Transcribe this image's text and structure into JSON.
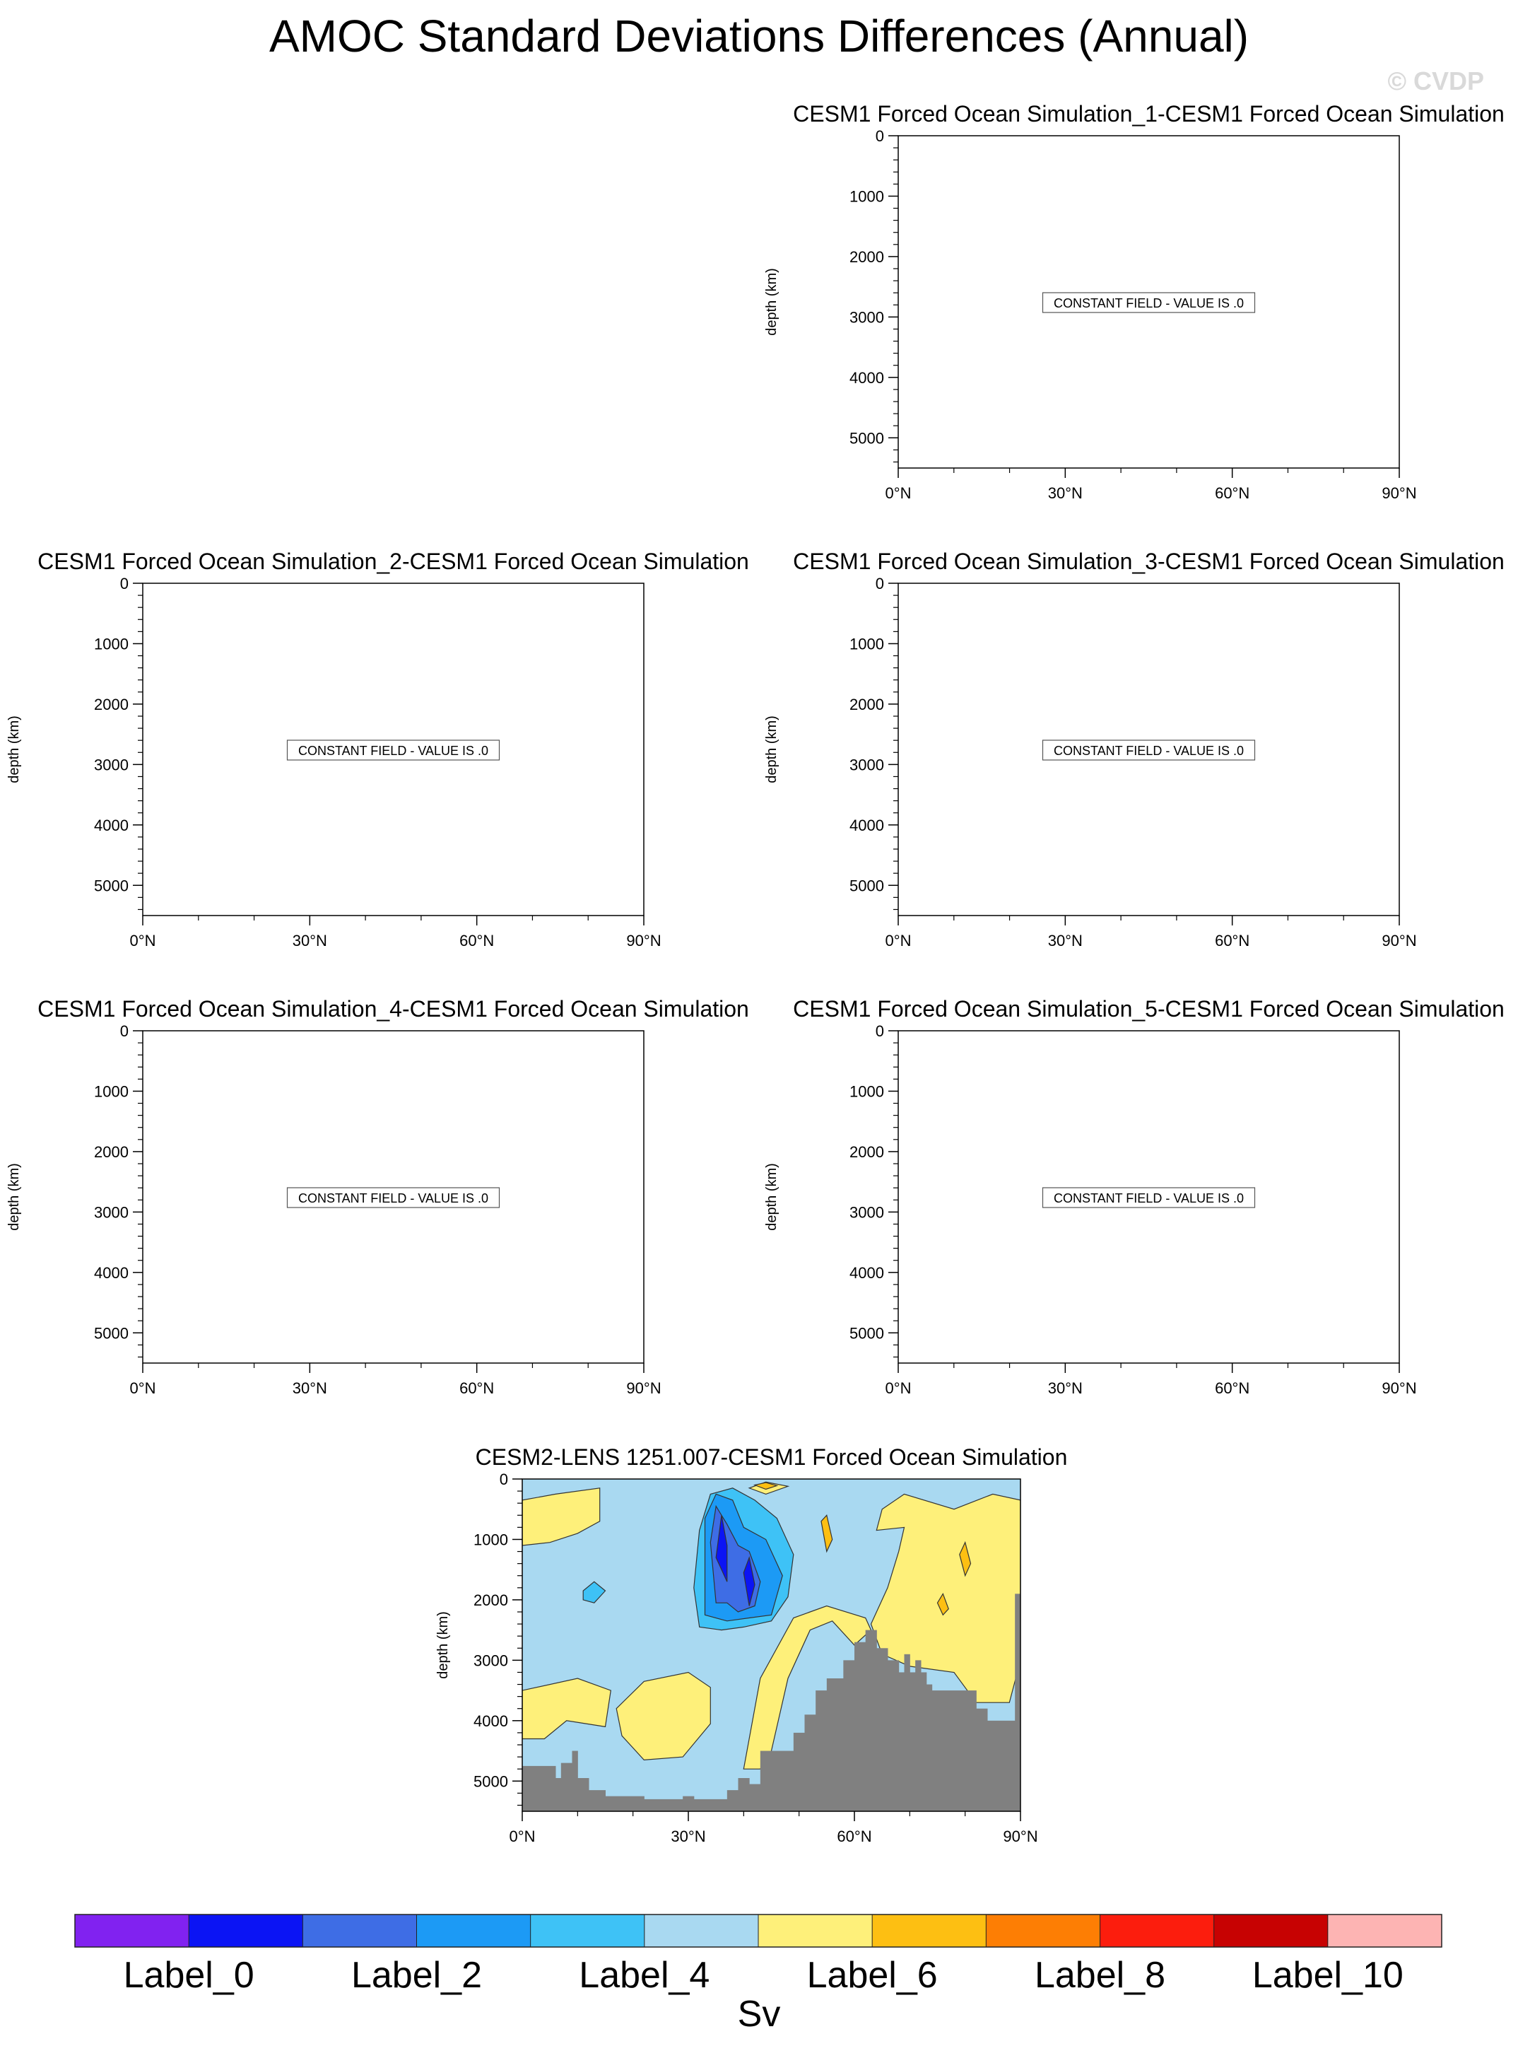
{
  "figure": {
    "title": "AMOC Standard Deviations Differences (Annual)",
    "watermark": "© CVDP",
    "constant_field_text": "CONSTANT FIELD - VALUE IS .0",
    "colorbar": {
      "colors": [
        "#8122f0",
        "#0b14f4",
        "#3e6de5",
        "#1c9af5",
        "#3ec2f6",
        "#a9d9f1",
        "#fef07a",
        "#fdbf12",
        "#fd7e04",
        "#fc1d0d",
        "#c70202",
        "#fdb4b3"
      ],
      "tick_labels": [
        "Label_0",
        "Label_2",
        "Label_4",
        "Label_6",
        "Label_8",
        "Label_10"
      ],
      "unit": "Sv"
    },
    "land_color": "#808080"
  },
  "chart_data": [
    {
      "type": "heatmap",
      "title": "CESM1 Forced Ocean Simulation_1-CESM1 Forced Ocean Simulation",
      "ylabel": "depth (km)",
      "xlim": [
        0,
        90
      ],
      "ylim": [
        0,
        5500
      ],
      "x_ticks": [
        "0°N",
        "30°N",
        "60°N",
        "90°N"
      ],
      "y_ticks": [
        "0",
        "1000",
        "2000",
        "3000",
        "4000",
        "5000"
      ],
      "constant_value": 0
    },
    {
      "type": "heatmap",
      "title": "CESM1 Forced Ocean Simulation_2-CESM1 Forced Ocean Simulation",
      "ylabel": "depth (km)",
      "xlim": [
        0,
        90
      ],
      "ylim": [
        0,
        5500
      ],
      "x_ticks": [
        "0°N",
        "30°N",
        "60°N",
        "90°N"
      ],
      "y_ticks": [
        "0",
        "1000",
        "2000",
        "3000",
        "4000",
        "5000"
      ],
      "constant_value": 0
    },
    {
      "type": "heatmap",
      "title": "CESM1 Forced Ocean Simulation_3-CESM1 Forced Ocean Simulation",
      "ylabel": "depth (km)",
      "xlim": [
        0,
        90
      ],
      "ylim": [
        0,
        5500
      ],
      "x_ticks": [
        "0°N",
        "30°N",
        "60°N",
        "90°N"
      ],
      "y_ticks": [
        "0",
        "1000",
        "2000",
        "3000",
        "4000",
        "5000"
      ],
      "constant_value": 0
    },
    {
      "type": "heatmap",
      "title": "CESM1 Forced Ocean Simulation_4-CESM1 Forced Ocean Simulation",
      "ylabel": "depth (km)",
      "xlim": [
        0,
        90
      ],
      "ylim": [
        0,
        5500
      ],
      "x_ticks": [
        "0°N",
        "30°N",
        "60°N",
        "90°N"
      ],
      "y_ticks": [
        "0",
        "1000",
        "2000",
        "3000",
        "4000",
        "5000"
      ],
      "constant_value": 0
    },
    {
      "type": "heatmap",
      "title": "CESM1 Forced Ocean Simulation_5-CESM1 Forced Ocean Simulation",
      "ylabel": "depth (km)",
      "xlim": [
        0,
        90
      ],
      "ylim": [
        0,
        5500
      ],
      "x_ticks": [
        "0°N",
        "30°N",
        "60°N",
        "90°N"
      ],
      "y_ticks": [
        "0",
        "1000",
        "2000",
        "3000",
        "4000",
        "5000"
      ],
      "constant_value": 0
    },
    {
      "type": "heatmap",
      "title": "CESM2-LENS 1251.007-CESM1 Forced Ocean Simulation",
      "ylabel": "depth (km)",
      "xlim": [
        0,
        90
      ],
      "ylim": [
        0,
        5500
      ],
      "x_ticks": [
        "0°N",
        "30°N",
        "60°N",
        "90°N"
      ],
      "y_ticks": [
        "0",
        "1000",
        "2000",
        "3000",
        "4000",
        "5000"
      ],
      "background_level": 5,
      "regions": [
        {
          "level": 6,
          "poly": [
            [
              0,
              350
            ],
            [
              6,
              250
            ],
            [
              14,
              150
            ],
            [
              14,
              700
            ],
            [
              10,
              900
            ],
            [
              5,
              1050
            ],
            [
              0,
              1100
            ]
          ]
        },
        {
          "level": 6,
          "poly": [
            [
              0,
              3500
            ],
            [
              10,
              3300
            ],
            [
              16,
              3500
            ],
            [
              15,
              4100
            ],
            [
              8,
              4000
            ],
            [
              4,
              4300
            ],
            [
              0,
              4300
            ]
          ]
        },
        {
          "level": 6,
          "poly": [
            [
              17,
              3800
            ],
            [
              22,
              3350
            ],
            [
              30,
              3200
            ],
            [
              34,
              3450
            ],
            [
              34,
              4050
            ],
            [
              29,
              4600
            ],
            [
              22,
              4650
            ],
            [
              18,
              4250
            ]
          ]
        },
        {
          "level": 6,
          "poly": [
            [
              45,
              4500
            ],
            [
              48,
              3300
            ],
            [
              52,
              2500
            ],
            [
              56,
              2350
            ],
            [
              60,
              2750
            ],
            [
              63,
              2500
            ],
            [
              62,
              2300
            ],
            [
              55,
              2100
            ],
            [
              49,
              2300
            ],
            [
              43,
              3300
            ],
            [
              40,
              4800
            ],
            [
              43,
              4800
            ]
          ]
        },
        {
          "level": 6,
          "poly": [
            [
              65,
              500
            ],
            [
              69,
              250
            ],
            [
              78,
              500
            ],
            [
              85,
              250
            ],
            [
              90,
              350
            ],
            [
              90,
              3000
            ],
            [
              88,
              3700
            ],
            [
              82,
              3700
            ],
            [
              78,
              3200
            ],
            [
              70,
              3100
            ],
            [
              65,
              2900
            ],
            [
              63,
              2400
            ],
            [
              66,
              1800
            ],
            [
              68,
              1200
            ],
            [
              69,
              800
            ],
            [
              64,
              850
            ]
          ]
        },
        {
          "level": 6,
          "poly": [
            [
              41,
              150
            ],
            [
              44,
              50
            ],
            [
              48,
              120
            ],
            [
              44,
              250
            ]
          ]
        },
        {
          "level": 4,
          "poly": [
            [
              32,
              850
            ],
            [
              34,
              250
            ],
            [
              38,
              150
            ],
            [
              42,
              350
            ],
            [
              46,
              650
            ],
            [
              49,
              1250
            ],
            [
              48,
              1950
            ],
            [
              45,
              2350
            ],
            [
              40,
              2450
            ],
            [
              36,
              2500
            ],
            [
              32,
              2450
            ],
            [
              31,
              1800
            ]
          ]
        },
        {
          "level": 4,
          "poly": [
            [
              11,
              1850
            ],
            [
              13,
              1700
            ],
            [
              15,
              1850
            ],
            [
              13,
              2050
            ],
            [
              11,
              2000
            ]
          ]
        },
        {
          "level": 3,
          "poly": [
            [
              33,
              650
            ],
            [
              35,
              250
            ],
            [
              38,
              350
            ],
            [
              40,
              800
            ],
            [
              44,
              1000
            ],
            [
              47,
              1600
            ],
            [
              45,
              2250
            ],
            [
              41,
              2300
            ],
            [
              37,
              2350
            ],
            [
              33,
              2250
            ],
            [
              33,
              1500
            ]
          ]
        },
        {
          "level": 2,
          "poly": [
            [
              34,
              1050
            ],
            [
              35,
              450
            ],
            [
              37,
              750
            ],
            [
              39,
              1100
            ],
            [
              41,
              1200
            ],
            [
              43,
              1700
            ],
            [
              42,
              2100
            ],
            [
              39,
              2200
            ],
            [
              37,
              2050
            ],
            [
              35,
              2050
            ]
          ]
        },
        {
          "level": 1,
          "poly": [
            [
              35,
              1300
            ],
            [
              36,
              600
            ],
            [
              37,
              1100
            ],
            [
              37,
              1700
            ]
          ]
        },
        {
          "level": 1,
          "poly": [
            [
              40,
              1550
            ],
            [
              41,
              1300
            ],
            [
              42,
              1750
            ],
            [
              41,
              2100
            ]
          ]
        },
        {
          "level": 7,
          "poly": [
            [
              42,
              100
            ],
            [
              44,
              60
            ],
            [
              46,
              110
            ],
            [
              44,
              170
            ]
          ]
        },
        {
          "level": 7,
          "poly": [
            [
              79,
              1250
            ],
            [
              80,
              1050
            ],
            [
              81,
              1400
            ],
            [
              80,
              1600
            ]
          ]
        },
        {
          "level": 7,
          "poly": [
            [
              75,
              2050
            ],
            [
              76,
              1900
            ],
            [
              77,
              2150
            ],
            [
              76,
              2250
            ]
          ]
        },
        {
          "level": 7,
          "poly": [
            [
              54,
              700
            ],
            [
              55,
              600
            ],
            [
              56,
              1000
            ],
            [
              55,
              1200
            ]
          ]
        }
      ],
      "bathymetry": [
        {
          "x0": 0,
          "x1": 6,
          "top": 4750
        },
        {
          "x0": 6,
          "x1": 7,
          "top": 4950
        },
        {
          "x0": 7,
          "x1": 9,
          "top": 4700
        },
        {
          "x0": 9,
          "x1": 10,
          "top": 4500
        },
        {
          "x0": 10,
          "x1": 12,
          "top": 4950
        },
        {
          "x0": 12,
          "x1": 15,
          "top": 5150
        },
        {
          "x0": 15,
          "x1": 22,
          "top": 5250
        },
        {
          "x0": 22,
          "x1": 29,
          "top": 5300
        },
        {
          "x0": 29,
          "x1": 31,
          "top": 5250
        },
        {
          "x0": 31,
          "x1": 37,
          "top": 5300
        },
        {
          "x0": 37,
          "x1": 39,
          "top": 5150
        },
        {
          "x0": 39,
          "x1": 41,
          "top": 4950
        },
        {
          "x0": 41,
          "x1": 43,
          "top": 5050
        },
        {
          "x0": 43,
          "x1": 49,
          "top": 4500
        },
        {
          "x0": 49,
          "x1": 51,
          "top": 4200
        },
        {
          "x0": 51,
          "x1": 53,
          "top": 3900
        },
        {
          "x0": 53,
          "x1": 55,
          "top": 3500
        },
        {
          "x0": 55,
          "x1": 58,
          "top": 3300
        },
        {
          "x0": 58,
          "x1": 60,
          "top": 3000
        },
        {
          "x0": 60,
          "x1": 62,
          "top": 2700
        },
        {
          "x0": 62,
          "x1": 64,
          "top": 2500
        },
        {
          "x0": 64,
          "x1": 66,
          "top": 2800
        },
        {
          "x0": 66,
          "x1": 68,
          "top": 3000
        },
        {
          "x0": 68,
          "x1": 69,
          "top": 3200
        },
        {
          "x0": 69,
          "x1": 70,
          "top": 2900
        },
        {
          "x0": 70,
          "x1": 71,
          "top": 3200
        },
        {
          "x0": 71,
          "x1": 72,
          "top": 3000
        },
        {
          "x0": 72,
          "x1": 73,
          "top": 3200
        },
        {
          "x0": 73,
          "x1": 74,
          "top": 3400
        },
        {
          "x0": 74,
          "x1": 82,
          "top": 3500
        },
        {
          "x0": 82,
          "x1": 84,
          "top": 3800
        },
        {
          "x0": 84,
          "x1": 89,
          "top": 4000
        },
        {
          "x0": 89,
          "x1": 90,
          "top": 1900
        }
      ]
    }
  ]
}
